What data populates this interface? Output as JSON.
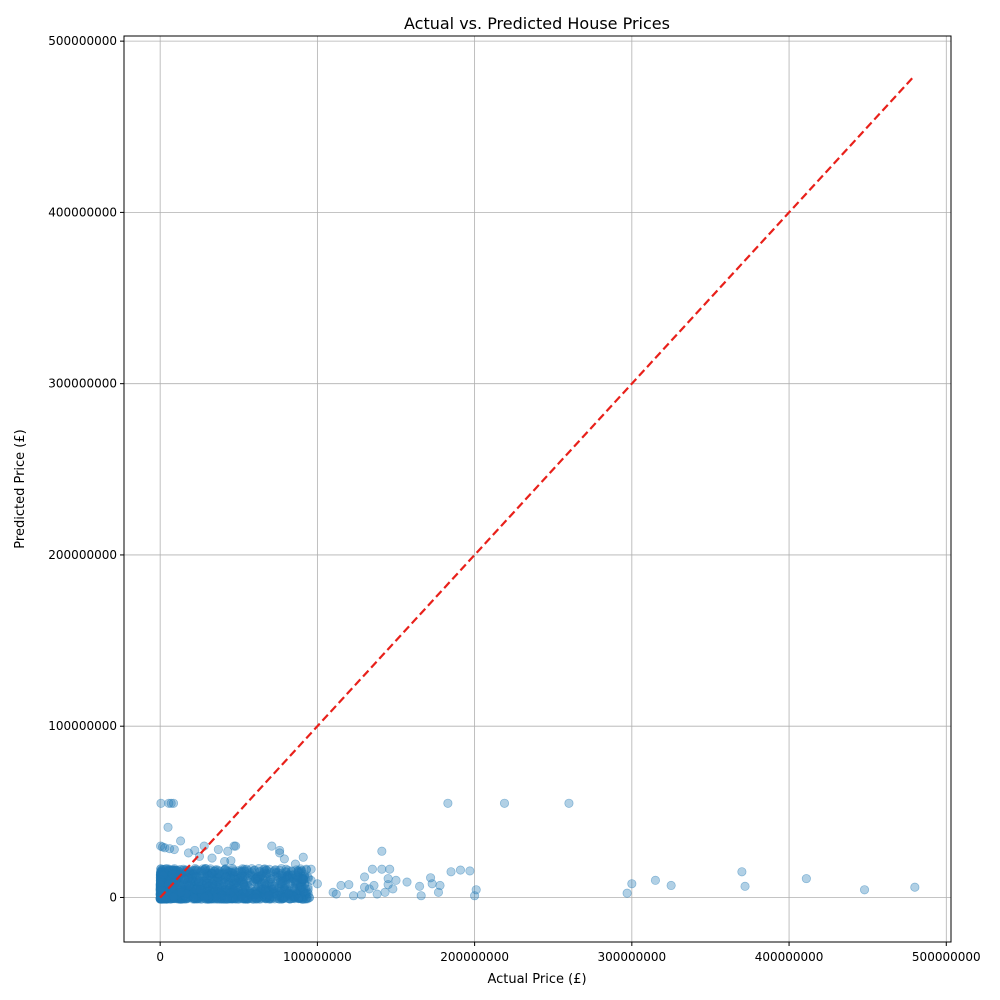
{
  "chart_data": {
    "type": "scatter",
    "title": "Actual vs. Predicted House Prices",
    "xlabel": "Actual Price (£)",
    "ylabel": "Predicted Price (£)",
    "xlim": [
      -23000000,
      503000000
    ],
    "ylim": [
      -26000000,
      503000000
    ],
    "x_ticks": [
      0,
      100000000,
      200000000,
      300000000,
      400000000,
      500000000
    ],
    "y_ticks": [
      0,
      100000000,
      200000000,
      300000000,
      400000000,
      500000000
    ],
    "x_tick_labels": [
      "0",
      "100000000",
      "200000000",
      "300000000",
      "400000000",
      "500000000"
    ],
    "y_tick_labels": [
      "0",
      "100000000",
      "200000000",
      "300000000",
      "400000000",
      "500000000"
    ],
    "grid": true,
    "point_color": "#1f77b4",
    "point_alpha": 0.35,
    "reference_line": {
      "style": "dashed",
      "color": "#e8201a",
      "x": [
        0,
        480000000
      ],
      "y": [
        0,
        480000000
      ]
    },
    "series": [
      {
        "points": [
          [
            500000,
            55000000
          ],
          [
            5500000,
            55000000
          ],
          [
            7000000,
            55000000
          ],
          [
            8500000,
            55000000
          ],
          [
            183000000,
            55000000
          ],
          [
            219000000,
            55000000
          ],
          [
            260000000,
            55000000
          ],
          [
            5000000,
            41000000
          ],
          [
            13000000,
            33000000
          ],
          [
            300000,
            30000000
          ],
          [
            1500000,
            29500000
          ],
          [
            3000000,
            29000000
          ],
          [
            6000000,
            28500000
          ],
          [
            9000000,
            28000000
          ],
          [
            18000000,
            26000000
          ],
          [
            22000000,
            27500000
          ],
          [
            28000000,
            30000000
          ],
          [
            37000000,
            28000000
          ],
          [
            43000000,
            27000000
          ],
          [
            47000000,
            30000000
          ],
          [
            48000000,
            30000000
          ],
          [
            71000000,
            30000000
          ],
          [
            76000000,
            26000000
          ],
          [
            76000000,
            27500000
          ],
          [
            91000000,
            23500000
          ],
          [
            141000000,
            27000000
          ],
          [
            25000000,
            24000000
          ],
          [
            33000000,
            23000000
          ],
          [
            41000000,
            21000000
          ],
          [
            45000000,
            21500000
          ],
          [
            79000000,
            22500000
          ],
          [
            86000000,
            19500000
          ],
          [
            55000000,
            16500000
          ],
          [
            60000000,
            16000000
          ],
          [
            66000000,
            16500000
          ],
          [
            73000000,
            16000000
          ],
          [
            80000000,
            16500000
          ],
          [
            93000000,
            16500000
          ],
          [
            96000000,
            16500000
          ],
          [
            52000000,
            14500000
          ],
          [
            62000000,
            12000000
          ],
          [
            70000000,
            11000000
          ],
          [
            90000000,
            11000000
          ],
          [
            96000000,
            10000000
          ],
          [
            100000000,
            8000000
          ],
          [
            110000000,
            3000000
          ],
          [
            112000000,
            2000000
          ],
          [
            115000000,
            7000000
          ],
          [
            120000000,
            7500000
          ],
          [
            123000000,
            1000000
          ],
          [
            128000000,
            1500000
          ],
          [
            130000000,
            6000000
          ],
          [
            130000000,
            12000000
          ],
          [
            133000000,
            5000000
          ],
          [
            135000000,
            16500000
          ],
          [
            136000000,
            7000000
          ],
          [
            138000000,
            2000000
          ],
          [
            141000000,
            16500000
          ],
          [
            143000000,
            3000000
          ],
          [
            145000000,
            7500000
          ],
          [
            145000000,
            11000000
          ],
          [
            146000000,
            16500000
          ],
          [
            148000000,
            5000000
          ],
          [
            150000000,
            10000000
          ],
          [
            157000000,
            9000000
          ],
          [
            165000000,
            6500000
          ],
          [
            166000000,
            1000000
          ],
          [
            172000000,
            11500000
          ],
          [
            173000000,
            8000000
          ],
          [
            177000000,
            3000000
          ],
          [
            178000000,
            7000000
          ],
          [
            185000000,
            15000000
          ],
          [
            191000000,
            16000000
          ],
          [
            197000000,
            15500000
          ],
          [
            200000000,
            1000000
          ],
          [
            201000000,
            4500000
          ],
          [
            297000000,
            2500000
          ],
          [
            300000000,
            8000000
          ],
          [
            315000000,
            10000000
          ],
          [
            325000000,
            7000000
          ],
          [
            370000000,
            15000000
          ],
          [
            372000000,
            6500000
          ],
          [
            411000000,
            11000000
          ],
          [
            448000000,
            4500000
          ],
          [
            480000000,
            6000000
          ]
        ]
      }
    ]
  }
}
